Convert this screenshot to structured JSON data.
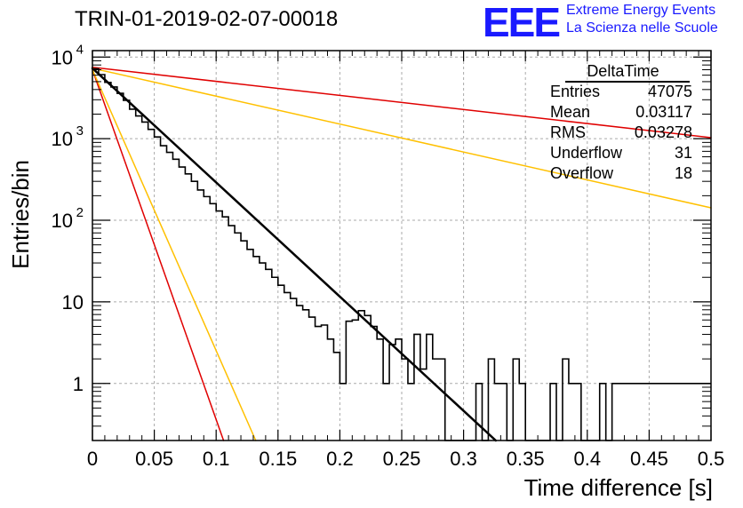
{
  "header": {
    "title": "TRIN-01-2019-02-07-00018",
    "logo_text": "EEE",
    "logo_line1": "Extreme Energy Events",
    "logo_line2": "La Scienza nelle Scuole"
  },
  "stats": {
    "title": "DeltaTime",
    "rows": [
      {
        "label": "Entries",
        "value": "47075"
      },
      {
        "label": "Mean",
        "value": "0.03117"
      },
      {
        "label": "RMS",
        "value": "0.03278"
      },
      {
        "label": "Underflow",
        "value": "31"
      },
      {
        "label": "Overflow",
        "value": "18"
      }
    ]
  },
  "colors": {
    "histogram": "#000000",
    "fit": "#000000",
    "red": "#e00000",
    "yellow": "#ffc000",
    "grid": "#aaaaaa"
  },
  "chart_data": {
    "type": "histogram",
    "title": "TRIN-01-2019-02-07-00018",
    "xlabel": "Time difference [s]",
    "ylabel": "Entries/bin",
    "xlim": [
      0,
      0.5
    ],
    "ylim": [
      0.2,
      12000
    ],
    "yscale": "log",
    "grid": true,
    "xticks": [
      "0",
      "0.05",
      "0.1",
      "0.15",
      "0.2",
      "0.25",
      "0.3",
      "0.35",
      "0.4",
      "0.45",
      "0.5"
    ],
    "yticks": [
      {
        "value": 1,
        "label": "1"
      },
      {
        "value": 10,
        "label": "10"
      },
      {
        "value": 100,
        "label": "10",
        "exp": "2"
      },
      {
        "value": 1000,
        "label": "10",
        "exp": "3"
      },
      {
        "value": 10000,
        "label": "10",
        "exp": "4"
      }
    ],
    "bin_width": 0.005,
    "histogram_values": [
      7200,
      6100,
      4900,
      4300,
      3600,
      2950,
      2300,
      1900,
      1600,
      1300,
      1050,
      820,
      680,
      560,
      450,
      370,
      300,
      235,
      195,
      160,
      130,
      110,
      86,
      70,
      56,
      44,
      36,
      30,
      25,
      20,
      16,
      13,
      11,
      9,
      8,
      6.5,
      5,
      5.2,
      3.5,
      2.4,
      1.0,
      5.8,
      6.0,
      7.8,
      6.8,
      5.0,
      3.5,
      1.0,
      3.0,
      3.5,
      2.0,
      1.0,
      4.0,
      1.5,
      4.0,
      2.0,
      2.0,
      0.0,
      0.0,
      0.0,
      0.0,
      0.0,
      1.0,
      0.0,
      2.0,
      1.0,
      1.0,
      0.0,
      2.0,
      1.0,
      0.0,
      0.0,
      0.0,
      0.0,
      1.0,
      0.0,
      2.0,
      1.0,
      1.0,
      0.0,
      0.0,
      0.0,
      1.0,
      0.0,
      1.0,
      1.0,
      1.0,
      1.0,
      1.0,
      1.0,
      1.0,
      1.0,
      1.0,
      1.0,
      1.0,
      1.0,
      1.0,
      1.0,
      1.0,
      1.0
    ],
    "lines": [
      {
        "color": "black",
        "width": 2.5,
        "points": [
          [
            0.0,
            7300
          ],
          [
            0.326,
            0.2
          ]
        ]
      },
      {
        "color": "red",
        "width": 1.5,
        "points": [
          [
            0.0,
            7000
          ],
          [
            0.106,
            0.2
          ]
        ]
      },
      {
        "color": "yellow",
        "width": 1.5,
        "points": [
          [
            0.0,
            7000
          ],
          [
            0.132,
            0.2
          ]
        ]
      },
      {
        "color": "red",
        "width": 1.5,
        "points": [
          [
            0.0,
            7500
          ],
          [
            0.5,
            1030
          ]
        ]
      },
      {
        "color": "yellow",
        "width": 1.5,
        "points": [
          [
            0.0,
            7300
          ],
          [
            0.5,
            142
          ]
        ]
      }
    ]
  }
}
